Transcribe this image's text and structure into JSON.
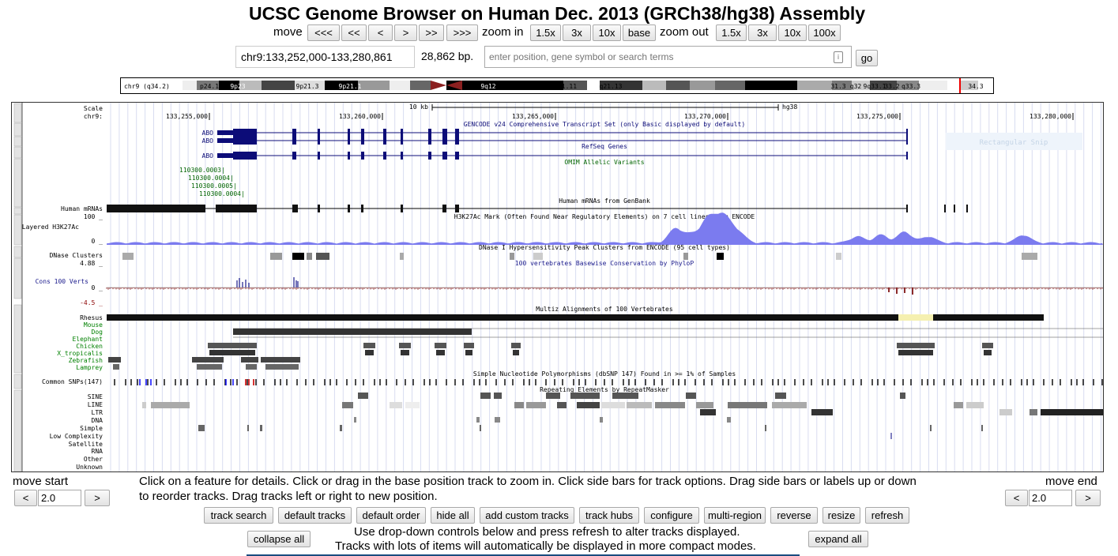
{
  "title": "UCSC Genome Browser on Human Dec. 2013 (GRCh38/hg38) Assembly",
  "nav": {
    "move_label": "move",
    "move_buttons": [
      "<<<",
      "<<",
      "<",
      ">",
      ">>",
      ">>>"
    ],
    "zoom_in_label": "zoom in",
    "zoom_in_buttons": [
      "1.5x",
      "3x",
      "10x",
      "base"
    ],
    "zoom_out_label": "zoom out",
    "zoom_out_buttons": [
      "1.5x",
      "3x",
      "10x",
      "100x"
    ]
  },
  "position": {
    "value": "chr9:133,252,000-133,280,861",
    "size": "28,862 bp.",
    "search_placeholder": "enter position, gene symbol or search terms",
    "go_label": "go"
  },
  "ideogram": {
    "chrom_label": "chr9 (q34.2)",
    "bands": [
      "p24.1",
      "9p23",
      "9p21.3",
      "9p21.1",
      "9q12",
      "9q13",
      "21.11",
      "q21.13",
      "9q31.1",
      "31.3",
      "q32",
      "9q33.1",
      "33.2",
      "q33.3",
      "34.3"
    ]
  },
  "tracks": {
    "scale_label": "Scale",
    "chrom_label": "chr9:",
    "scale_bar_text": "10 kb",
    "assembly": "hg38",
    "ticks": [
      "133,255,000",
      "133,260,000",
      "133,265,000",
      "133,270,000",
      "133,275,000",
      "133,280,000"
    ],
    "gencode_title": "GENCODE v24 Comprehensive Transcript Set (only Basic displayed by default)",
    "gene_names": [
      "ABO",
      "ABO",
      "ABO"
    ],
    "refseq_title": "RefSeq Genes",
    "omim_title": "OMIM Allelic Variants",
    "omim_variants": [
      "110300.0003",
      "110300.0004",
      "110300.0005",
      "110300.0004"
    ],
    "rect_snip": "Rectangular Snip",
    "mrna_title": "Human mRNAs from GenBank",
    "mrna_label": "Human mRNAs",
    "h3k27_title": "H3K27Ac Mark (Often Found Near Regulatory Elements) on 7 cell lines from ENCODE",
    "h3k27_label": "Layered H3K27Ac",
    "h3k27_max": "100 _",
    "h3k27_min": "0 _",
    "dnase_title": "DNase I Hypersensitivity Peak Clusters from ENCODE (95 cell types)",
    "dnase_label": "DNase Clusters",
    "cons_title": "100 vertebrates Basewise Conservation by PhyloP",
    "cons_label": "Cons 100 Verts",
    "cons_max": "4.88 _",
    "cons_zero": "0 _",
    "cons_min": "-4.5 _",
    "multiz_title": "Multiz Alignments of 100 Vertebrates",
    "species": [
      "Rhesus",
      "Mouse",
      "Dog",
      "Elephant",
      "Chicken",
      "X_tropicalis",
      "Zebrafish",
      "Lamprey"
    ],
    "snp_title": "Simple Nucleotide Polymorphisms (dbSNP 147) Found in >= 1% of Samples",
    "snp_label": "Common SNPs(147)",
    "rmsk_title": "Repeating Elements by RepeatMasker",
    "rmsk_classes": [
      "SINE",
      "LINE",
      "LTR",
      "DNA",
      "Simple",
      "Low Complexity",
      "Satellite",
      "RNA",
      "Other",
      "Unknown"
    ]
  },
  "move_start": {
    "label": "move start",
    "value": "2.0",
    "left": "<",
    "right": ">"
  },
  "move_end": {
    "label": "move end",
    "value": "2.0",
    "left": "<",
    "right": ">"
  },
  "help_text_1": "Click on a feature for details. Click or drag in the base position track to zoom in. Click side bars for track options. Drag side bars or labels up or down",
  "help_text_2": "to reorder tracks. Drag tracks left or right to new position.",
  "bottom_buttons": [
    "track search",
    "default tracks",
    "default order",
    "hide all",
    "add custom tracks",
    "track hubs",
    "configure",
    "multi-region",
    "reverse",
    "resize",
    "refresh"
  ],
  "collapse_all": "collapse all",
  "expand_all": "expand all",
  "info_1": "Use drop-down controls below and press refresh to alter tracks displayed.",
  "info_2": "Tracks with lots of items will automatically be displayed in more compact modes.",
  "colors": {
    "gene": "#0c0c78",
    "h3k27": "#7b7bef",
    "omim": "#006400",
    "species_green": "#008000",
    "cons_red": "#8b0000",
    "highlight": "#f5f0b0"
  }
}
